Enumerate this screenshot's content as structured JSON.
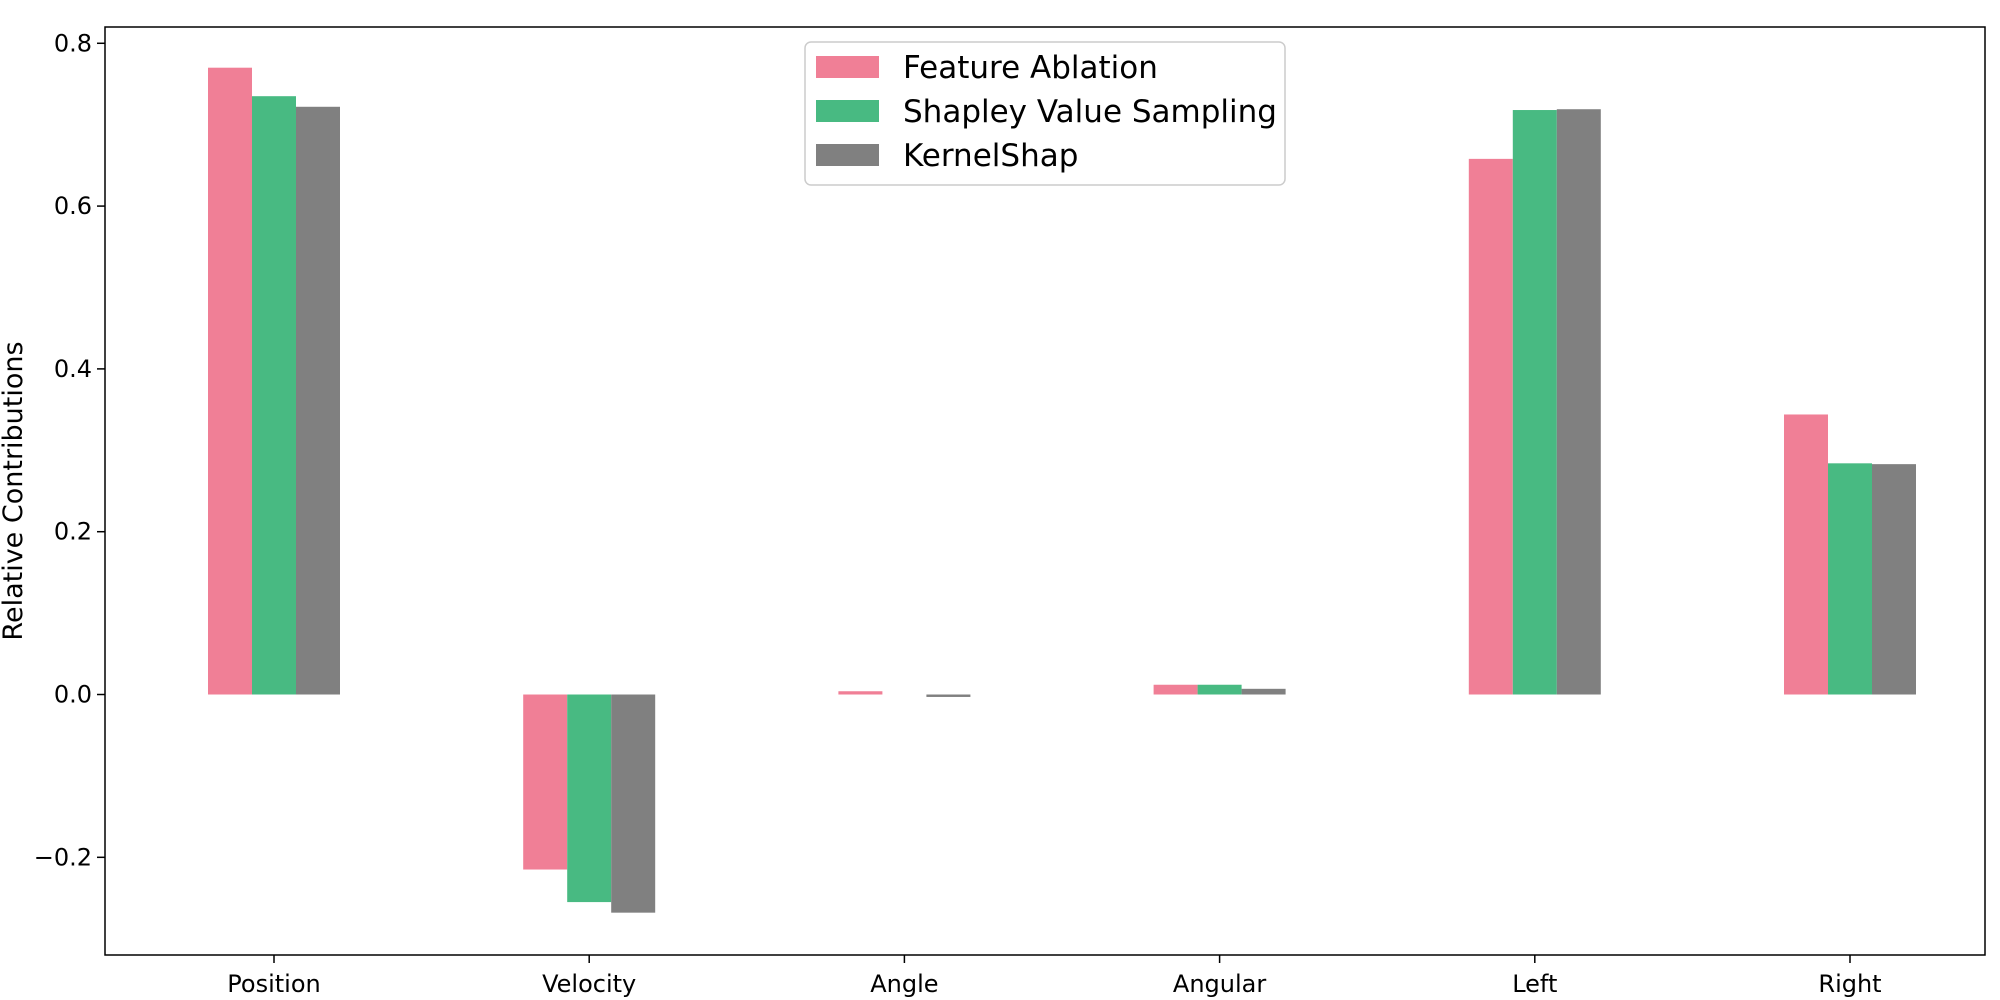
{
  "chart_data": {
    "type": "bar",
    "title": "",
    "xlabel": "",
    "ylabel": "Relative Contributions",
    "categories": [
      "Position",
      "Velocity",
      "Angle",
      "Angular",
      "Left",
      "Right"
    ],
    "series": [
      {
        "name": "Feature Ablation",
        "color": "#f07f96",
        "values": [
          0.77,
          -0.215,
          0.004,
          0.012,
          0.658,
          0.344
        ]
      },
      {
        "name": "Shapley Value Sampling",
        "color": "#48ba82",
        "values": [
          0.735,
          -0.255,
          0.0,
          0.012,
          0.718,
          0.284
        ]
      },
      {
        "name": "KernelShap",
        "color": "#808080",
        "values": [
          0.722,
          -0.268,
          -0.003,
          0.007,
          0.719,
          0.283
        ]
      }
    ],
    "ylim": [
      -0.32,
      0.82
    ],
    "yticks": [
      -0.2,
      0.0,
      0.2,
      0.4,
      0.6,
      0.8
    ],
    "ytick_labels": [
      "−0.2",
      "0.0",
      "0.2",
      "0.4",
      "0.6",
      "0.8"
    ],
    "grid": false,
    "legend": {
      "position": "top-center"
    }
  }
}
